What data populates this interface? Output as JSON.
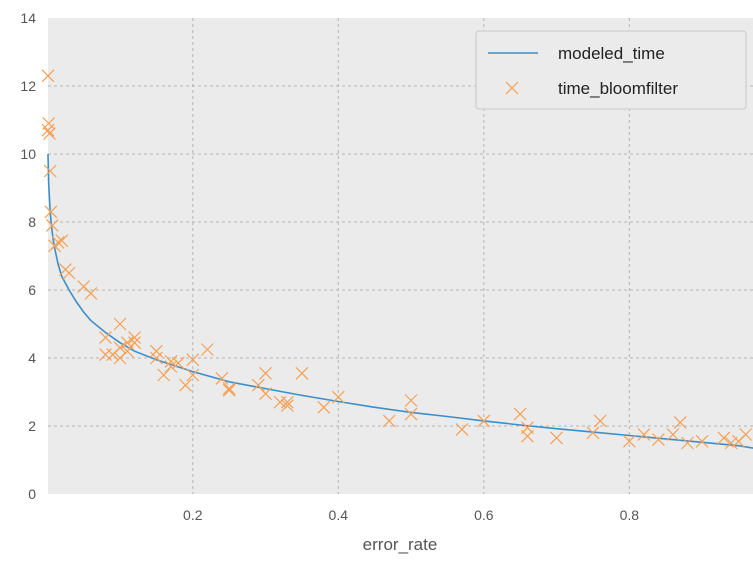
{
  "chart_data": {
    "type": "scatter",
    "title": "",
    "xlabel": "error_rate",
    "ylabel": "",
    "xlim": [
      0.001,
      0.97
    ],
    "ylim": [
      0,
      14
    ],
    "xticks": [
      0.2,
      0.4,
      0.6,
      0.8
    ],
    "xtick_labels": [
      "0.2",
      "0.4",
      "0.6",
      "0.8"
    ],
    "yticks": [
      0,
      2,
      4,
      6,
      8,
      10,
      12,
      14
    ],
    "ytick_labels": [
      "0",
      "2",
      "4",
      "6",
      "8",
      "10",
      "12",
      "14"
    ],
    "grid": true,
    "legend_position": "top-right",
    "colors": {
      "background": "#ebebeb",
      "line": "#3b8fc9",
      "marker": "#f5a054",
      "grid": "#b4b4b4"
    },
    "series": [
      {
        "name": "modeled_time",
        "kind": "line",
        "x": [
          0.001,
          0.002,
          0.004,
          0.006,
          0.008,
          0.01,
          0.015,
          0.02,
          0.03,
          0.04,
          0.05,
          0.06,
          0.08,
          0.1,
          0.12,
          0.15,
          0.2,
          0.25,
          0.3,
          0.35,
          0.4,
          0.45,
          0.5,
          0.55,
          0.6,
          0.65,
          0.7,
          0.75,
          0.8,
          0.85,
          0.9,
          0.95,
          0.97
        ],
        "y": [
          10.0,
          9.1,
          8.3,
          7.85,
          7.5,
          7.25,
          6.75,
          6.4,
          6.0,
          5.65,
          5.35,
          5.1,
          4.75,
          4.45,
          4.2,
          3.95,
          3.6,
          3.3,
          3.1,
          2.9,
          2.72,
          2.55,
          2.4,
          2.28,
          2.15,
          2.03,
          1.92,
          1.82,
          1.72,
          1.62,
          1.52,
          1.42,
          1.35
        ]
      },
      {
        "name": "time_bloomfilter",
        "kind": "scatter",
        "marker": "x",
        "x": [
          0.001,
          0.001,
          0.002,
          0.003,
          0.004,
          0.005,
          0.007,
          0.01,
          0.015,
          0.02,
          0.025,
          0.03,
          0.05,
          0.06,
          0.08,
          0.08,
          0.09,
          0.1,
          0.1,
          0.1,
          0.11,
          0.11,
          0.12,
          0.12,
          0.15,
          0.15,
          0.16,
          0.17,
          0.17,
          0.18,
          0.19,
          0.2,
          0.2,
          0.22,
          0.24,
          0.25,
          0.25,
          0.29,
          0.3,
          0.3,
          0.32,
          0.33,
          0.33,
          0.35,
          0.38,
          0.4,
          0.47,
          0.5,
          0.5,
          0.57,
          0.6,
          0.65,
          0.66,
          0.66,
          0.7,
          0.75,
          0.76,
          0.8,
          0.82,
          0.84,
          0.86,
          0.87,
          0.88,
          0.9,
          0.93,
          0.94,
          0.95,
          0.96
        ],
        "y": [
          12.3,
          10.7,
          10.9,
          10.6,
          9.5,
          8.3,
          7.9,
          7.3,
          7.4,
          7.45,
          6.6,
          6.5,
          6.1,
          5.9,
          4.6,
          4.1,
          4.1,
          4.0,
          5.0,
          4.3,
          4.45,
          4.2,
          4.6,
          4.45,
          4.0,
          4.2,
          3.5,
          3.75,
          3.9,
          3.85,
          3.2,
          3.5,
          3.95,
          4.25,
          3.4,
          3.1,
          3.05,
          3.2,
          3.55,
          2.95,
          2.7,
          2.6,
          2.7,
          3.55,
          2.55,
          2.85,
          2.15,
          2.75,
          2.35,
          1.9,
          2.15,
          2.35,
          1.7,
          1.95,
          1.65,
          1.8,
          2.15,
          1.55,
          1.75,
          1.6,
          1.75,
          2.1,
          1.5,
          1.55,
          1.65,
          1.5,
          1.55,
          1.75
        ]
      }
    ]
  }
}
